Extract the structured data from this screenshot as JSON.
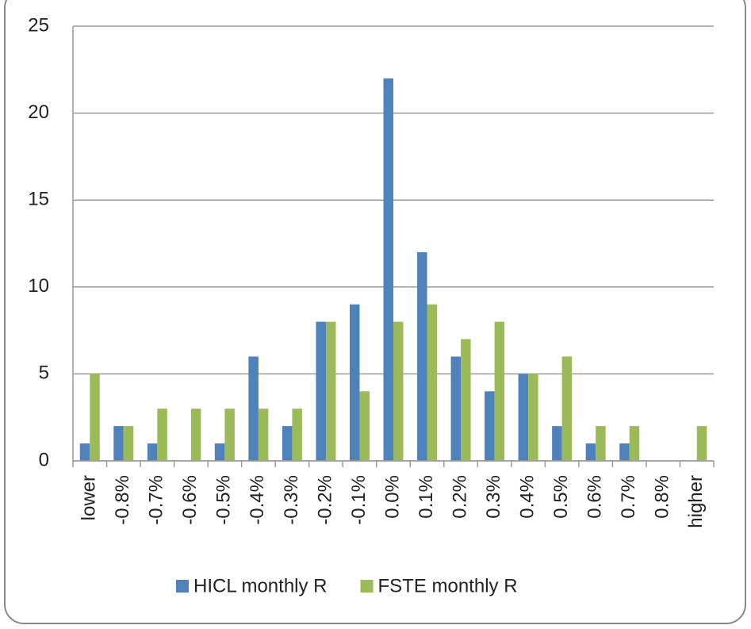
{
  "chart_data": {
    "type": "bar",
    "categories": [
      "lower",
      "-0.8%",
      "-0.7%",
      "-0.6%",
      "-0.5%",
      "-0.4%",
      "-0.3%",
      "-0.2%",
      "-0.1%",
      "0.0%",
      "0.1%",
      "0.2%",
      "0.3%",
      "0.4%",
      "0.5%",
      "0.6%",
      "0.7%",
      "0.8%",
      "higher"
    ],
    "series": [
      {
        "name": "HICL monthly R",
        "color": "#4f81bd",
        "values": [
          1,
          2,
          1,
          0,
          1,
          6,
          2,
          8,
          9,
          22,
          12,
          6,
          4,
          5,
          2,
          1,
          1,
          0,
          0
        ]
      },
      {
        "name": "FSTE monthly R",
        "color": "#9bbb59",
        "values": [
          5,
          2,
          3,
          3,
          3,
          3,
          3,
          8,
          4,
          8,
          9,
          7,
          8,
          5,
          6,
          2,
          2,
          0,
          2
        ]
      }
    ],
    "ylim": [
      0,
      25
    ],
    "yticks": [
      0,
      5,
      10,
      15,
      20,
      25
    ],
    "grid": true,
    "legend": "bottom"
  }
}
